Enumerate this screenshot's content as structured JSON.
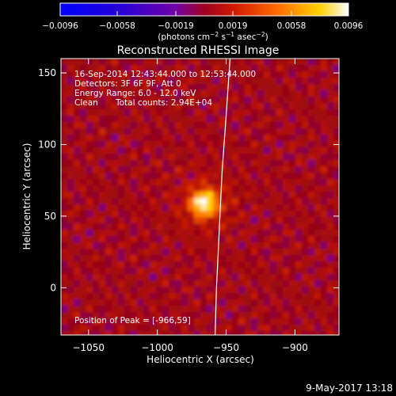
{
  "chart_data": {
    "type": "heatmap",
    "title": "Reconstructed RHESSI Image",
    "xlabel": "Heliocentric X (arcsec)",
    "ylabel": "Heliocentric Y (arcsec)",
    "xlim": [
      -1070,
      -868
    ],
    "ylim": [
      -33,
      160
    ],
    "x_ticks": [
      -1050,
      -1000,
      -950,
      -900
    ],
    "x_tick_labels": [
      "−1050",
      "−1000",
      "−950",
      "−900"
    ],
    "y_ticks": [
      0,
      50,
      100,
      150
    ],
    "y_tick_labels": [
      "0",
      "50",
      "100",
      "150"
    ],
    "colorbar": {
      "range": [
        -0.0096,
        0.0096
      ],
      "ticks": [
        -0.0096,
        -0.0058,
        -0.0019,
        0.0019,
        0.0058,
        0.0096
      ],
      "tick_labels": [
        "−0.0096",
        "−0.0058",
        "−0.0019",
        "0.0019",
        "0.0058",
        "0.0096"
      ],
      "unit_base": "(photons cm",
      "unit_sup1": "−2",
      "unit_mid": " s",
      "unit_sup2": "−1",
      "unit_mid2": " asec",
      "unit_sup3": "−2",
      "unit_end": ")"
    },
    "annotations": {
      "time": "16-Sep-2014 12:43:44.000 to 12:53:44.000",
      "detectors": "Detectors: 3F 6F 9F, Att 0",
      "energy": "Energy Range: 6.0 - 12.0 keV",
      "clean_label": "Clean",
      "counts": "Total counts: 2.94E+04",
      "peak": "Position of Peak = [-966,59]"
    },
    "peak": {
      "x": -966,
      "y": 59
    },
    "limb_points": [
      [
        -947,
        162
      ],
      [
        -950,
        120
      ],
      [
        -953,
        80
      ],
      [
        -955,
        40
      ],
      [
        -957,
        0
      ],
      [
        -958,
        -33
      ]
    ],
    "footer": "9-May-2017 13:18"
  }
}
